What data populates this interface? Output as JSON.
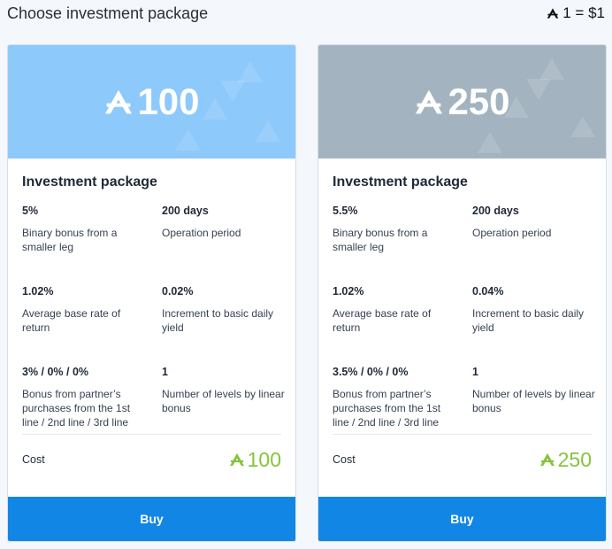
{
  "header": {
    "title": "Choose investment package",
    "rate_text": "1 = $1",
    "rate_icon": "token-icon"
  },
  "colors": {
    "banner_1": "#8ec9fb",
    "banner_2": "#a3b4c0",
    "accent_green": "#84c43c",
    "button_blue": "#1286e5"
  },
  "packages": [
    {
      "amount": "100",
      "title": "Investment package",
      "stats": [
        {
          "value": "5%",
          "label": "Binary bonus from a smaller leg"
        },
        {
          "value": "200 days",
          "label": "Operation period"
        },
        {
          "value": "1.02%",
          "label": "Average base rate of return"
        },
        {
          "value": "0.02%",
          "label": "Increment to basic daily yield"
        },
        {
          "value": "3% / 0% / 0%",
          "label": "Bonus from partner’s purchases from the 1st line / 2nd line / 3rd line"
        },
        {
          "value": "1",
          "label": "Number of levels by linear bonus"
        }
      ],
      "cost_label": "Cost",
      "cost_value": "100",
      "buy_label": "Buy"
    },
    {
      "amount": "250",
      "title": "Investment package",
      "stats": [
        {
          "value": "5.5%",
          "label": "Binary bonus from a smaller leg"
        },
        {
          "value": "200 days",
          "label": "Operation period"
        },
        {
          "value": "1.02%",
          "label": "Average base rate of return"
        },
        {
          "value": "0.04%",
          "label": "Increment to basic daily yield"
        },
        {
          "value": "3.5% / 0% / 0%",
          "label": "Bonus from partner’s purchases from the 1st line / 2nd line / 3rd line"
        },
        {
          "value": "1",
          "label": "Number of levels by linear bonus"
        }
      ],
      "cost_label": "Cost",
      "cost_value": "250",
      "buy_label": "Buy"
    }
  ]
}
